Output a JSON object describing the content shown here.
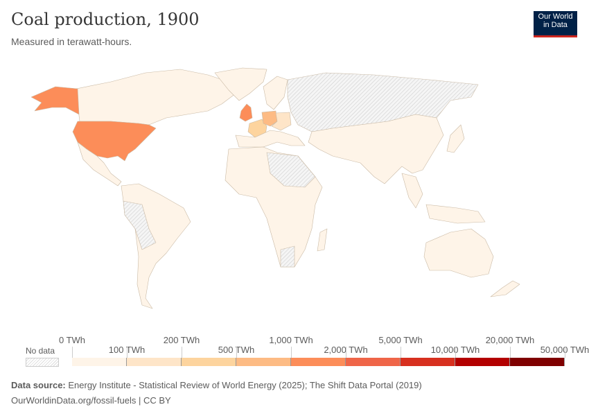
{
  "header": {
    "title": "Coal production, 1900",
    "subtitle": "Measured in terawatt-hours.",
    "logo": "Our World in Data"
  },
  "legend": {
    "no_data_label": "No data",
    "bins": [
      {
        "from": "0 TWh",
        "to": "100 TWh",
        "color": "#fef4e8"
      },
      {
        "from": "100 TWh",
        "to": "200 TWh",
        "color": "#fee5c8"
      },
      {
        "from": "200 TWh",
        "to": "500 TWh",
        "color": "#fdd49e"
      },
      {
        "from": "500 TWh",
        "to": "1,000 TWh",
        "color": "#fdbb84"
      },
      {
        "from": "1,000 TWh",
        "to": "2,000 TWh",
        "color": "#fc8d59"
      },
      {
        "from": "2,000 TWh",
        "to": "5,000 TWh",
        "color": "#ef6548"
      },
      {
        "from": "5,000 TWh",
        "to": "10,000 TWh",
        "color": "#d7301f"
      },
      {
        "from": "10,000 TWh",
        "to": "20,000 TWh",
        "color": "#b30000"
      },
      {
        "from": "20,000 TWh",
        "to": "50,000 TWh",
        "color": "#7f0000"
      }
    ],
    "tick_labels": [
      "0 TWh",
      "100 TWh",
      "200 TWh",
      "500 TWh",
      "1,000 TWh",
      "2,000 TWh",
      "5,000 TWh",
      "10,000 TWh",
      "20,000 TWh",
      "50,000 TWh"
    ]
  },
  "map_colors": {
    "low": "#fef4e8",
    "us": "#fc8d59",
    "uk": "#fc8d59",
    "germany": "#fdbb84",
    "france": "#fdd49e",
    "austria_hungary": "#fee5c8",
    "no_data": "#e8e8e8",
    "border": "#c9b9a4"
  },
  "footer": {
    "source_label": "Data source:",
    "source_text": " Energy Institute - Statistical Review of World Energy (2025); The Shift Data Portal (2019)",
    "url": "OurWorldinData.org/fossil-fuels | CC BY"
  }
}
